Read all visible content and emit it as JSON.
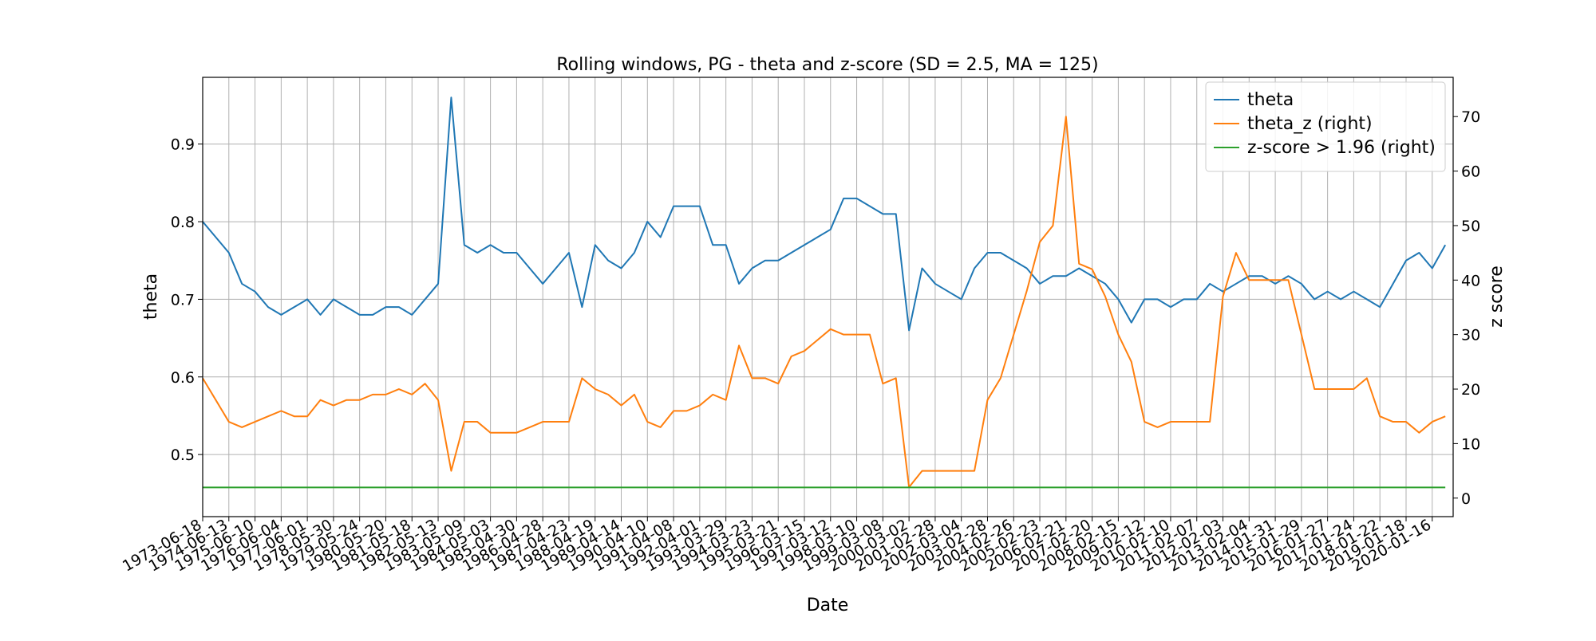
{
  "chart_data": {
    "type": "line",
    "title": "Rolling windows, PG - theta and z-score (SD = 2.5, MA = 125)",
    "x_label": "Date",
    "y_label": "theta",
    "y2_label": "z score",
    "categories": [
      "1973-06-18",
      null,
      "1974-06-13",
      null,
      "1975-06-10",
      null,
      "1976-06-04",
      null,
      "1977-06-01",
      null,
      "1978-05-30",
      null,
      "1979-05-24",
      null,
      "1980-05-20",
      null,
      "1981-05-18",
      null,
      "1982-05-13",
      null,
      "1983-05-09",
      null,
      "1984-05-03",
      null,
      "1985-04-30",
      null,
      "1986-04-28",
      null,
      "1987-04-23",
      null,
      "1988-04-19",
      null,
      "1989-04-14",
      null,
      "1990-04-10",
      null,
      "1991-04-08",
      null,
      "1992-04-01",
      null,
      "1993-03-29",
      null,
      "1994-03-23",
      null,
      "1995-03-21",
      null,
      "1996-03-15",
      null,
      "1997-03-12",
      null,
      "1998-03-10",
      null,
      "1999-03-08",
      null,
      "2000-03-02",
      null,
      "2001-02-28",
      null,
      "2002-03-04",
      null,
      "2003-02-28",
      null,
      "2004-02-26",
      null,
      "2005-02-23",
      null,
      "2006-02-21",
      null,
      "2007-02-20",
      null,
      "2008-02-15",
      null,
      "2009-02-12",
      null,
      "2010-02-10",
      null,
      "2011-02-07",
      null,
      "2012-02-03",
      null,
      "2013-02-04",
      null,
      "2014-01-31",
      null,
      "2015-01-29",
      null,
      "2016-01-27",
      null,
      "2017-01-24",
      null,
      "2018-01-22",
      null,
      "2019-01-18",
      null,
      "2020-01-16",
      null
    ],
    "series": [
      {
        "name": "theta",
        "color": "#1f77b4",
        "axis": "y",
        "values": [
          0.8,
          0.78,
          0.76,
          0.72,
          0.71,
          0.69,
          0.68,
          0.69,
          0.7,
          0.68,
          0.7,
          0.69,
          0.68,
          0.68,
          0.69,
          0.69,
          0.68,
          0.7,
          0.72,
          0.96,
          0.77,
          0.76,
          0.77,
          0.76,
          0.76,
          0.74,
          0.72,
          0.74,
          0.76,
          0.69,
          0.77,
          0.75,
          0.74,
          0.76,
          0.8,
          0.78,
          0.82,
          0.82,
          0.82,
          0.77,
          0.77,
          0.72,
          0.74,
          0.75,
          0.75,
          0.76,
          0.77,
          0.78,
          0.79,
          0.83,
          0.83,
          0.82,
          0.81,
          0.81,
          0.66,
          0.74,
          0.72,
          0.71,
          0.7,
          0.74,
          0.76,
          0.76,
          0.75,
          0.74,
          0.72,
          0.73,
          0.73,
          0.74,
          0.73,
          0.72,
          0.7,
          0.67,
          0.7,
          0.7,
          0.69,
          0.7,
          0.7,
          0.72,
          0.71,
          0.72,
          0.73,
          0.73,
          0.72,
          0.73,
          0.72,
          0.7,
          0.71,
          0.7,
          0.71,
          0.7,
          0.69,
          0.72,
          0.75,
          0.76,
          0.74,
          0.77
        ]
      },
      {
        "name": "theta_z (right)",
        "color": "#ff7f0e",
        "axis": "y2",
        "values": [
          22,
          18,
          14,
          13,
          14,
          15,
          16,
          15,
          15,
          18,
          17,
          18,
          18,
          19,
          19,
          20,
          19,
          21,
          18,
          5,
          14,
          14,
          12,
          12,
          12,
          13,
          14,
          14,
          14,
          22,
          20,
          19,
          17,
          19,
          14,
          13,
          16,
          16,
          17,
          19,
          18,
          28,
          22,
          22,
          21,
          26,
          27,
          29,
          31,
          30,
          30,
          30,
          21,
          22,
          2,
          5,
          5,
          5,
          5,
          5,
          18,
          22,
          30,
          38,
          47,
          50,
          70,
          43,
          42,
          37,
          30,
          25,
          14,
          13,
          14,
          14,
          14,
          14,
          37,
          45,
          40,
          40,
          40,
          40,
          30,
          20,
          20,
          20,
          20,
          22,
          15,
          14,
          14,
          12,
          14,
          15
        ]
      },
      {
        "name": "z-score > 1.96 (right)",
        "color": "#2ca02c",
        "axis": "y2",
        "values": [
          1.96,
          1.96,
          1.96,
          1.96,
          1.96,
          1.96,
          1.96,
          1.96,
          1.96,
          1.96,
          1.96,
          1.96,
          1.96,
          1.96,
          1.96,
          1.96,
          1.96,
          1.96,
          1.96,
          1.96,
          1.96,
          1.96,
          1.96,
          1.96,
          1.96,
          1.96,
          1.96,
          1.96,
          1.96,
          1.96,
          1.96,
          1.96,
          1.96,
          1.96,
          1.96,
          1.96,
          1.96,
          1.96,
          1.96,
          1.96,
          1.96,
          1.96,
          1.96,
          1.96,
          1.96,
          1.96,
          1.96,
          1.96,
          1.96,
          1.96,
          1.96,
          1.96,
          1.96,
          1.96,
          1.96,
          1.96,
          1.96,
          1.96,
          1.96,
          1.96,
          1.96,
          1.96,
          1.96,
          1.96,
          1.96,
          1.96,
          1.96,
          1.96,
          1.96,
          1.96,
          1.96,
          1.96,
          1.96,
          1.96,
          1.96,
          1.96,
          1.96,
          1.96,
          1.96,
          1.96,
          1.96,
          1.96,
          1.96,
          1.96,
          1.96,
          1.96,
          1.96,
          1.96,
          1.96,
          1.96,
          1.96,
          1.96,
          1.96,
          1.96,
          1.96,
          1.96
        ]
      }
    ],
    "ylim": [
      0.42,
      0.986
    ],
    "yticks": [
      0.5,
      0.6,
      0.7,
      0.8,
      0.9
    ],
    "y2lim": [
      -3.4,
      77.2
    ],
    "y2ticks": [
      0,
      10,
      20,
      30,
      40,
      50,
      60,
      70
    ],
    "grid": true,
    "legend": "upper right"
  }
}
